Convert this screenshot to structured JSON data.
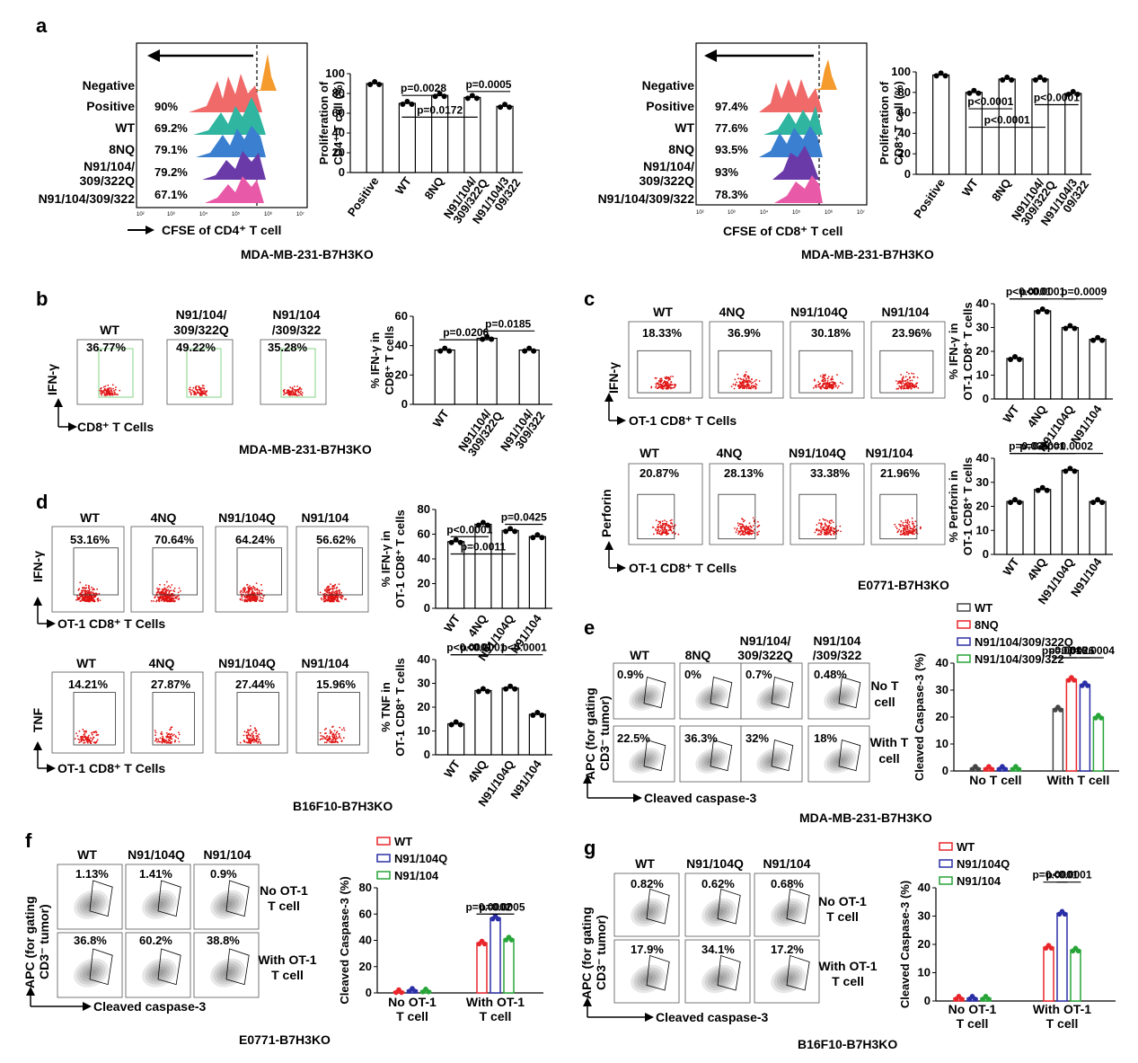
{
  "a": {
    "letter": "a",
    "rows": [
      "Negative",
      "Positive",
      "WT",
      "8NQ",
      "N91/104/",
      "309/322Q",
      "N91/104/309/322"
    ],
    "left": {
      "pcts": [
        "90%",
        "69.2%",
        "79.1%",
        "79.2%",
        "67.1%"
      ],
      "xlabel": "CFSE of CD4⁺ T cell",
      "cell_line": "MDA-MB-231-B7H3KO",
      "ylabel1": "Proliferation of",
      "ylabel2": "CD4⁺ T cell (%)"
    },
    "right": {
      "pcts": [
        "97.4%",
        "77.6%",
        "93.5%",
        "93%",
        "78.3%"
      ],
      "xlabel": "CFSE of CD8⁺ T cell",
      "cell_line": "MDA-MB-231-B7H3KO",
      "ylabel1": "Proliferation of",
      "ylabel2": "CD8⁺ T cell (%)"
    },
    "ticks": [
      "10²",
      "10³",
      "10⁴",
      "10⁵",
      "10⁶",
      "10⁷"
    ]
  },
  "b": {
    "letter": "b",
    "cols": [
      "WT",
      "N91/104/",
      "309/322Q",
      "N91/104",
      "/309/322"
    ],
    "pcts": [
      "36.77%",
      "49.22%",
      "35.28%"
    ],
    "ylab": "IFN-γ",
    "xlab": "CD8⁺ T  Cells",
    "cell_line": "MDA-MB-231-B7H3KO",
    "ylabel1": "% IFN-γ in",
    "ylabel2": "CD8⁺ T cells"
  },
  "c": {
    "letter": "c",
    "cols": [
      "WT",
      "4NQ",
      "N91/104Q",
      "N91/104"
    ],
    "pcts_ifn": [
      "18.33%",
      "36.9%",
      "30.18%",
      "23.96%"
    ],
    "pcts_perf": [
      "20.87%",
      "28.13%",
      "33.38%",
      "21.96%"
    ],
    "ylab_ifn": "IFN-γ",
    "ylab_perf": "Perforin",
    "xlab": "OT-1 CD8⁺ T Cells",
    "cell_line": "E0771-B7H3KO",
    "yl_ifn1": "% IFN-γ in",
    "yl_ifn2": "OT-1 CD8⁺ T cells",
    "yl_perf1": "% Perforin in",
    "yl_perf2": "OT-1 CD8⁺ T cells"
  },
  "d": {
    "letter": "d",
    "cols": [
      "WT",
      "4NQ",
      "N91/104Q",
      "N91/104"
    ],
    "pcts_ifn": [
      "53.16%",
      "70.64%",
      "64.24%",
      "56.62%"
    ],
    "pcts_tnf": [
      "14.21%",
      "27.87%",
      "27.44%",
      "15.96%"
    ],
    "ylab_ifn": "IFN-γ",
    "ylab_tnf": "TNF",
    "xlab": "OT-1 CD8⁺ T Cells",
    "cell_line": "B16F10-B7H3KO",
    "yl_ifn1": "% IFN-γ in",
    "yl_ifn2": "OT-1 CD8⁺ T cells",
    "yl_tnf1": "% TNF in",
    "yl_tnf2": "OT-1 CD8⁺ T cells"
  },
  "e": {
    "letter": "e",
    "cols": [
      "WT",
      "8NQ",
      "N91/104/",
      "309/322Q",
      "N91/104",
      "/309/322"
    ],
    "pcts_no": [
      "0.9%",
      "0%",
      "0.7%",
      "0.48%"
    ],
    "pcts_with": [
      "22.5%",
      "36.3%",
      "32%",
      "18%"
    ],
    "no_t": [
      "No T",
      "cell"
    ],
    "with_t": [
      "With T",
      "cell"
    ],
    "ylab1": "APC (for gating",
    "ylab2": "CD3⁻ tumor)",
    "xlab": "Cleaved caspase-3",
    "cell_line": "MDA-MB-231-B7H3KO",
    "legend": [
      "WT",
      "8NQ",
      "N91/104/309/322Q",
      "N91/104/309/322"
    ],
    "ylabel": "Cleaved Caspase-3 (%)",
    "groups": [
      "No T cell",
      "With T cell"
    ]
  },
  "f": {
    "letter": "f",
    "cols": [
      "WT",
      "N91/104Q",
      "N91/104"
    ],
    "pcts_no": [
      "1.13%",
      "1.41%",
      "0.9%"
    ],
    "pcts_with": [
      "36.8%",
      "60.2%",
      "38.8%"
    ],
    "no_t": [
      "No OT-1",
      "T cell"
    ],
    "with_t": [
      "With OT-1",
      "T cell"
    ],
    "ylab1": "APC (for gating",
    "ylab2": "CD3⁻ tumor)",
    "xlab": "Cleaved caspase-3",
    "cell_line": "E0771-B7H3KO",
    "legend": [
      "WT",
      "N91/104Q",
      "N91/104"
    ],
    "ylabel": "Cleaved Caspase-3 (%)",
    "groups": [
      "No OT-1",
      "T cell",
      "With OT-1",
      "T cell"
    ]
  },
  "g": {
    "letter": "g",
    "cols": [
      "WT",
      "N91/104Q",
      "N91/104"
    ],
    "pcts_no": [
      "0.82%",
      "0.62%",
      "0.68%"
    ],
    "pcts_with": [
      "17.9%",
      "34.1%",
      "17.2%"
    ],
    "no_t": [
      "No OT-1",
      "T cell"
    ],
    "with_t": [
      "With OT-1",
      "T cell"
    ],
    "ylab1": "APC (for gating",
    "ylab2": "CD3⁻ tumor)",
    "xlab": "Cleaved caspase-3",
    "cell_line": "B16F10-B7H3KO",
    "legend": [
      "WT",
      "N91/104Q",
      "N91/104"
    ],
    "ylabel": "Cleaved Caspase-3 (%)",
    "groups": [
      "No OT-1",
      "T cell",
      "With OT-1",
      "T cell"
    ]
  },
  "colors": {
    "WT": "#444444",
    "c2": "#e8262b",
    "c3": "#2b2fa6",
    "c4": "#27a437",
    "dots": "#e01414",
    "flow_neg": "#f59a2c",
    "flow_pos": "#f06a6a",
    "flow_wt": "#30b5a0",
    "flow_8nq": "#3a7fd0",
    "flow_q": "#6a3aa8",
    "flow_n": "#e85aa8"
  },
  "chart_data": [
    {
      "id": "a_left",
      "type": "bar",
      "categories": [
        "Positive",
        "WT",
        "8NQ",
        "N91/104/309/322Q",
        "N91/104/309/322"
      ],
      "tick_labels": [
        "Positive",
        "WT",
        "8NQ",
        "N91/104/",
        "309/322Q",
        "N91/104/3",
        "09/322"
      ],
      "values": [
        90,
        70,
        78,
        76,
        67
      ],
      "ylim": [
        0,
        100
      ],
      "yticks": [
        0,
        20,
        40,
        60,
        80,
        100
      ],
      "ylabel": "Proliferation of CD4⁺ T cell (%)",
      "pvalues": [
        "p=0.0172",
        "p=0.0028",
        "p=0.0005"
      ]
    },
    {
      "id": "a_right",
      "type": "bar",
      "categories": [
        "Positive",
        "WT",
        "8NQ",
        "N91/104/309/322Q",
        "N91/104/309/322"
      ],
      "tick_labels": [
        "Positive",
        "WT",
        "8NQ",
        "N91/104/",
        "309/322Q",
        "N91/104/3",
        "09/322"
      ],
      "values": [
        97,
        80,
        93,
        93,
        79
      ],
      "ylim": [
        0,
        100
      ],
      "yticks": [
        0,
        20,
        40,
        60,
        80,
        100
      ],
      "ylabel": "Proliferation of CD8⁺ T cell (%)",
      "pvalues": [
        "p<0.0001",
        "p<0.0001",
        "p<0.0001"
      ]
    },
    {
      "id": "b",
      "type": "bar",
      "categories": [
        "WT",
        "N91/104/309/322Q",
        "N91/104/309/322"
      ],
      "tick_labels": [
        "WT",
        "N91/104/",
        "309/322Q",
        "N91/104/",
        "309/322"
      ],
      "values": [
        37,
        45,
        37
      ],
      "ylim": [
        0,
        60
      ],
      "yticks": [
        0,
        20,
        40,
        60
      ],
      "ylabel": "% IFN-γ in CD8⁺ T cells",
      "pvalues": [
        "p=0.0206",
        "p=0.0185"
      ]
    },
    {
      "id": "c_ifn",
      "type": "bar",
      "categories": [
        "WT",
        "4NQ",
        "N91/104Q",
        "N91/104"
      ],
      "values": [
        17,
        37,
        30,
        25
      ],
      "ylim": [
        0,
        40
      ],
      "yticks": [
        0,
        10,
        20,
        30,
        40
      ],
      "ylabel": "% IFN-γ in OT-1 CD8⁺ T cells",
      "pvalues": [
        "p<0.0001",
        "p<0.0001",
        "p=0.0009"
      ]
    },
    {
      "id": "c_perf",
      "type": "bar",
      "categories": [
        "WT",
        "4NQ",
        "N91/104Q",
        "N91/104"
      ],
      "values": [
        22,
        27,
        35,
        22
      ],
      "ylim": [
        0,
        40
      ],
      "yticks": [
        0,
        10,
        20,
        30,
        40
      ],
      "ylabel": "% Perforin in OT-1 CD8⁺ T cells",
      "pvalues": [
        "p=0.0001",
        "p=0.0002",
        "p=0.035"
      ]
    },
    {
      "id": "d_ifn",
      "type": "bar",
      "categories": [
        "WT",
        "4NQ",
        "N91/104Q",
        "N91/104"
      ],
      "values": [
        54,
        68,
        63,
        58
      ],
      "ylim": [
        0,
        80
      ],
      "yticks": [
        0,
        20,
        40,
        60,
        80
      ],
      "ylabel": "% IFN-γ in OT-1 CD8⁺ T cells",
      "pvalues": [
        "p=0.0011",
        "p<0.0001",
        "p=0.0425"
      ]
    },
    {
      "id": "d_tnf",
      "type": "bar",
      "categories": [
        "WT",
        "4NQ",
        "N91/104Q",
        "N91/104"
      ],
      "values": [
        13,
        27,
        28,
        17
      ],
      "ylim": [
        0,
        40
      ],
      "yticks": [
        0,
        10,
        20,
        30,
        40
      ],
      "ylabel": "% TNF in OT-1 CD8⁺ T cells",
      "pvalues": [
        "p<0.0001",
        "p<0.0001",
        "p<0.0001"
      ]
    },
    {
      "id": "e",
      "type": "bar",
      "groups": [
        "No T cell",
        "With T cell"
      ],
      "series": [
        {
          "name": "WT",
          "values": [
            1,
            23
          ]
        },
        {
          "name": "8NQ",
          "values": [
            1,
            34
          ]
        },
        {
          "name": "N91/104/309/322Q",
          "values": [
            1,
            32
          ]
        },
        {
          "name": "N91/104/309/322",
          "values": [
            1,
            20
          ]
        }
      ],
      "ylim": [
        0,
        40
      ],
      "yticks": [
        0,
        10,
        20,
        30,
        40
      ],
      "ylabel": "Cleaved Caspase-3 (%)",
      "pvalues": [
        "p=0.0026",
        "p=0.0015",
        "p=0.0004"
      ]
    },
    {
      "id": "f",
      "type": "bar",
      "groups": [
        "No OT-1 T cell",
        "With OT-1 T cell"
      ],
      "series": [
        {
          "name": "WT",
          "values": [
            1,
            38
          ]
        },
        {
          "name": "N91/104Q",
          "values": [
            2,
            57
          ]
        },
        {
          "name": "N91/104",
          "values": [
            1.5,
            41
          ]
        }
      ],
      "ylim": [
        0,
        80
      ],
      "yticks": [
        0,
        20,
        40,
        60,
        80
      ],
      "ylabel": "Cleaved Caspase-3 (%)",
      "pvalues": [
        "p=0.0002",
        "p=0.0005"
      ]
    },
    {
      "id": "g",
      "type": "bar",
      "groups": [
        "No OT-1 T cell",
        "With OT-1 T cell"
      ],
      "series": [
        {
          "name": "WT",
          "values": [
            1,
            19
          ]
        },
        {
          "name": "N91/104Q",
          "values": [
            1,
            31
          ]
        },
        {
          "name": "N91/104",
          "values": [
            1,
            18
          ]
        }
      ],
      "ylim": [
        0,
        40
      ],
      "yticks": [
        0,
        10,
        20,
        30,
        40
      ],
      "ylabel": "Cleaved Caspase-3 (%)",
      "pvalues": [
        "p=0.0001",
        "p<0.0001"
      ]
    }
  ]
}
